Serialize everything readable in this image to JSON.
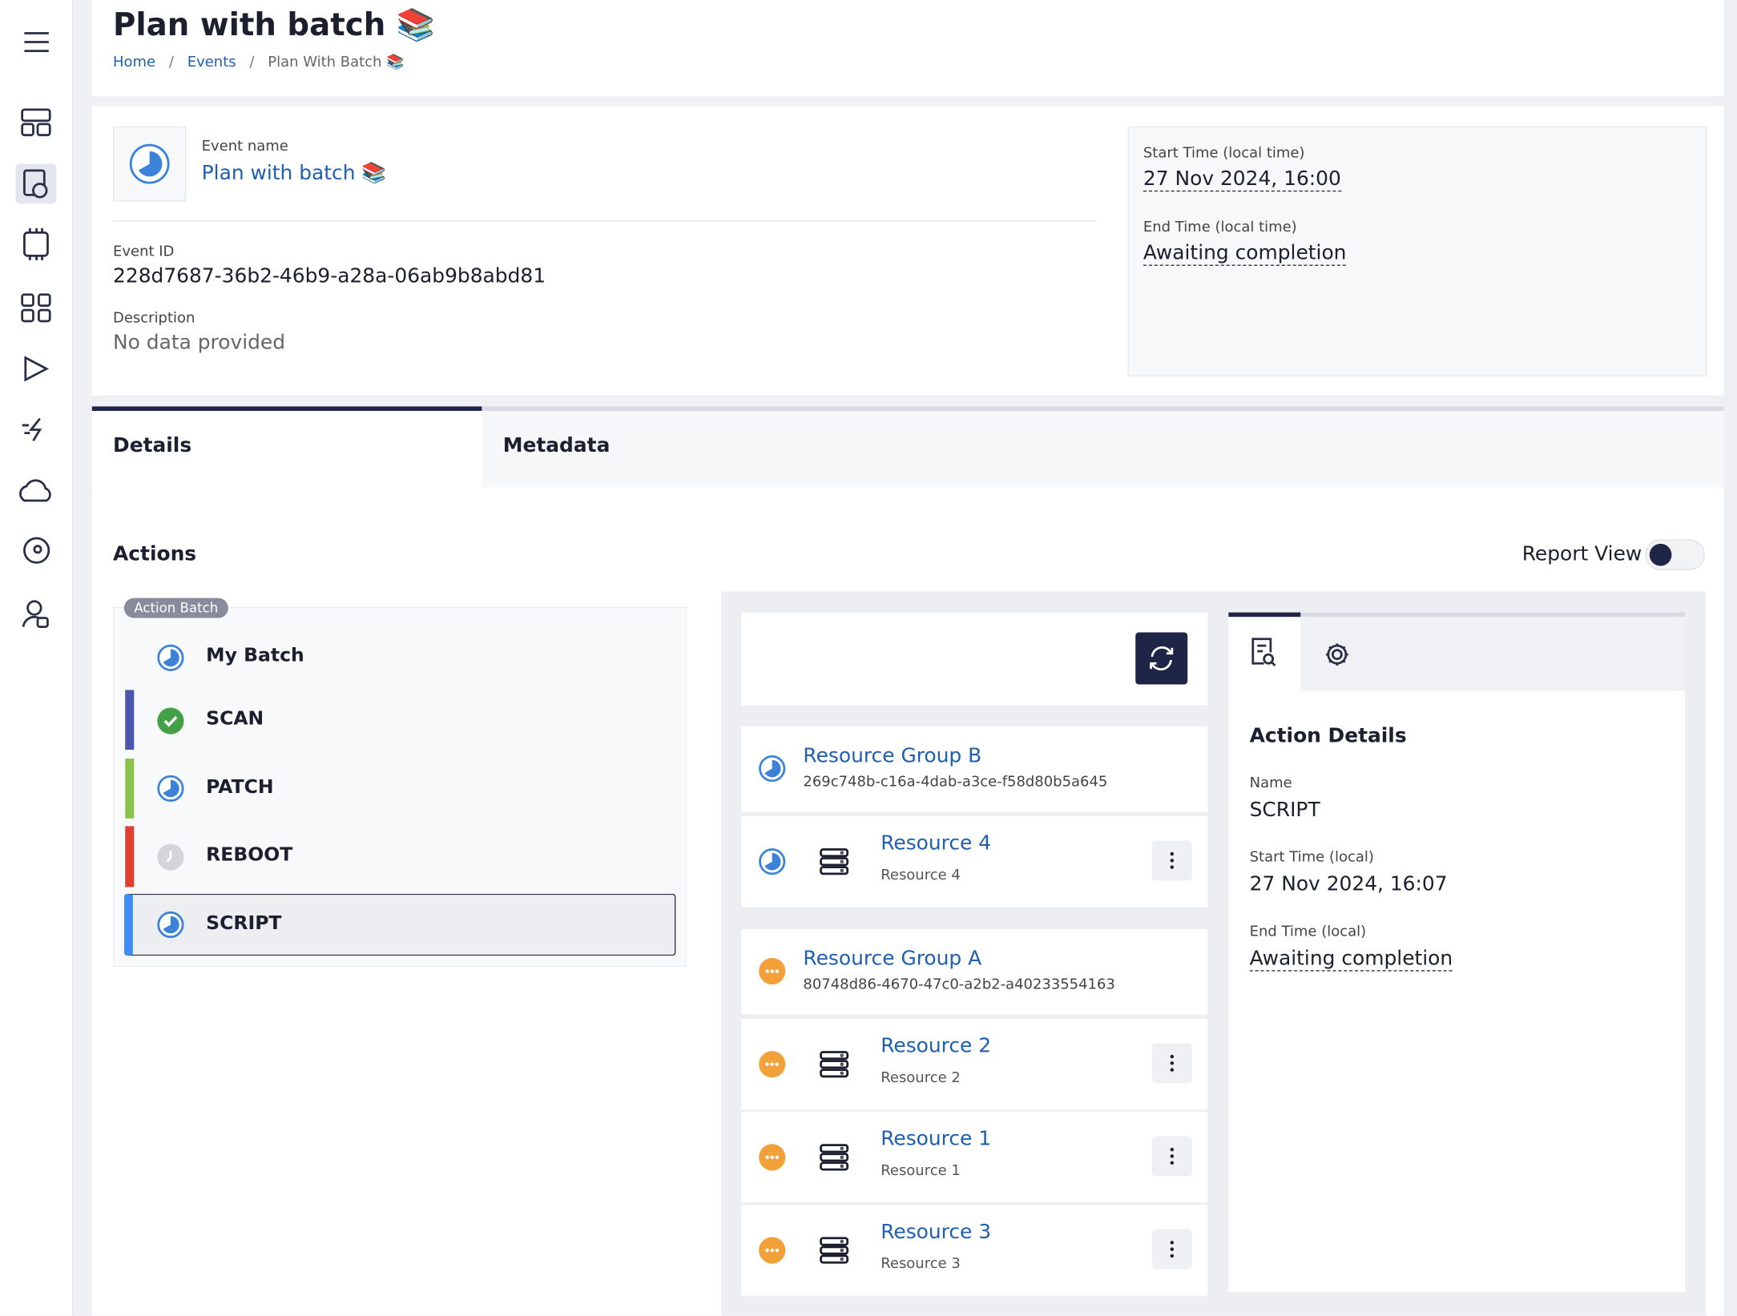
{
  "header": {
    "title": "Plan with batch 📚",
    "breadcrumb": [
      "Home",
      "Events",
      "Plan With Batch 📚"
    ],
    "separator": "/"
  },
  "event": {
    "name_label": "Event name",
    "name": "Plan with batch 📚",
    "id_label": "Event ID",
    "id": "228d7687-36b2-46b9-a28a-06ab9b8abd81",
    "description_label": "Description",
    "description": "No data provided",
    "start_label": "Start Time (local time)",
    "start": "27 Nov 2024, 16:00",
    "end_label": "End Time (local time)",
    "end": "Awaiting completion"
  },
  "tabs": [
    "Details",
    "Metadata"
  ],
  "actions": {
    "title": "Actions",
    "report_view": "Report View",
    "batch_tag": "Action Batch",
    "batch_name": "My Batch",
    "items": [
      "SCAN",
      "PATCH",
      "REBOOT",
      "SCRIPT"
    ]
  },
  "groups": [
    {
      "name": "Resource Group B",
      "id": "269c748b-c16a-4dab-a3ce-f58d80b5a645",
      "resources": [
        {
          "name": "Resource 4",
          "sub": "Resource 4"
        }
      ]
    },
    {
      "name": "Resource Group A",
      "id": "80748d86-4670-47c0-a2b2-a40233554163",
      "resources": [
        {
          "name": "Resource 2",
          "sub": "Resource 2"
        },
        {
          "name": "Resource 1",
          "sub": "Resource 1"
        },
        {
          "name": "Resource 3",
          "sub": "Resource 3"
        }
      ]
    }
  ],
  "details": {
    "title": "Action Details",
    "name_label": "Name",
    "name": "SCRIPT",
    "start_label": "Start Time (local)",
    "start": "27 Nov 2024, 16:07",
    "end_label": "End Time (local)",
    "end": "Awaiting completion"
  }
}
